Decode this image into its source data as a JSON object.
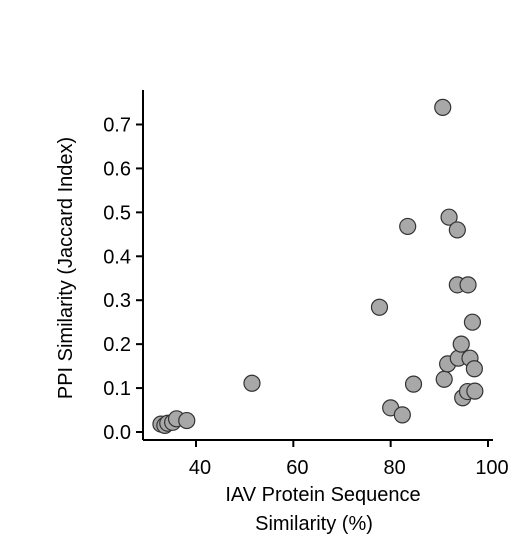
{
  "chart_data": {
    "type": "scatter",
    "xlabel_lines": [
      "IAV Protein Sequence",
      "Similarity (%)"
    ],
    "ylabel": "PPI Similarity (Jaccard Index)",
    "xlim": [
      30,
      100
    ],
    "ylim": [
      0,
      0.77
    ],
    "xticks": [
      {
        "value": 40,
        "label": "40"
      },
      {
        "value": 60,
        "label": "60"
      },
      {
        "value": 80,
        "label": "80"
      },
      {
        "value": 100,
        "label": "100"
      }
    ],
    "yticks": [
      {
        "value": 0.0,
        "label": "0.0"
      },
      {
        "value": 0.1,
        "label": "0.1"
      },
      {
        "value": 0.2,
        "label": "0.2"
      },
      {
        "value": 0.3,
        "label": "0.3"
      },
      {
        "value": 0.4,
        "label": "0.4"
      },
      {
        "value": 0.5,
        "label": "0.5"
      },
      {
        "value": 0.6,
        "label": "0.6"
      },
      {
        "value": 0.7,
        "label": "0.7"
      }
    ],
    "grid": false,
    "marker_color": "#a8a8a8",
    "marker_edge_color": "#333333",
    "points": [
      {
        "x": 32.8,
        "y": 0.018
      },
      {
        "x": 33.6,
        "y": 0.015
      },
      {
        "x": 34.2,
        "y": 0.02
      },
      {
        "x": 35.2,
        "y": 0.022
      },
      {
        "x": 36.0,
        "y": 0.03
      },
      {
        "x": 38.1,
        "y": 0.026
      },
      {
        "x": 51.5,
        "y": 0.111
      },
      {
        "x": 77.7,
        "y": 0.284
      },
      {
        "x": 80.0,
        "y": 0.055
      },
      {
        "x": 82.4,
        "y": 0.039
      },
      {
        "x": 83.5,
        "y": 0.468
      },
      {
        "x": 84.7,
        "y": 0.109
      },
      {
        "x": 90.7,
        "y": 0.739
      },
      {
        "x": 91.0,
        "y": 0.12
      },
      {
        "x": 91.7,
        "y": 0.155
      },
      {
        "x": 92.0,
        "y": 0.489
      },
      {
        "x": 93.7,
        "y": 0.46
      },
      {
        "x": 93.7,
        "y": 0.335
      },
      {
        "x": 93.9,
        "y": 0.168
      },
      {
        "x": 94.5,
        "y": 0.2
      },
      {
        "x": 94.8,
        "y": 0.078
      },
      {
        "x": 95.8,
        "y": 0.092
      },
      {
        "x": 95.9,
        "y": 0.335
      },
      {
        "x": 96.3,
        "y": 0.168
      },
      {
        "x": 96.8,
        "y": 0.25
      },
      {
        "x": 97.2,
        "y": 0.144
      },
      {
        "x": 97.3,
        "y": 0.093
      }
    ]
  }
}
